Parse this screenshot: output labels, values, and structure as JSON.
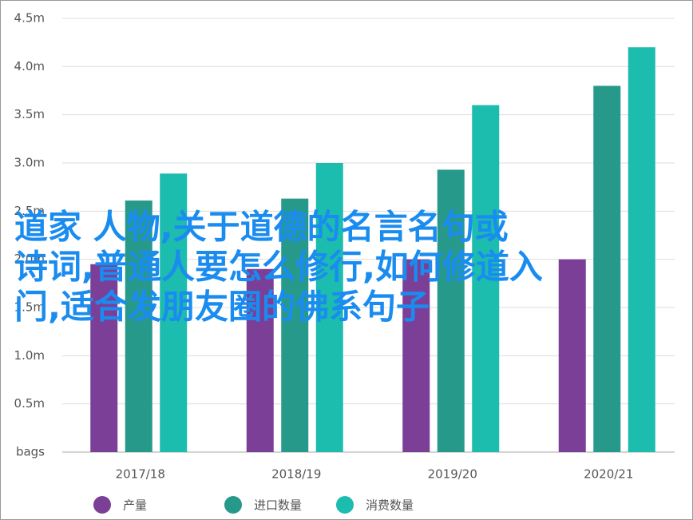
{
  "chart_data": {
    "type": "bar",
    "categories": [
      "2017/18",
      "2018/19",
      "2019/20",
      "2020/21"
    ],
    "series": [
      {
        "name": "产量",
        "color": "#7b3f97",
        "values": [
          1.95,
          1.9,
          2.0,
          2.0
        ]
      },
      {
        "name": "进口数量",
        "color": "#27998b",
        "values": [
          2.61,
          2.63,
          2.93,
          3.8
        ]
      },
      {
        "name": "消费数量",
        "color": "#1cbcaf",
        "values": [
          2.89,
          3.0,
          3.6,
          4.2
        ]
      }
    ],
    "ylim": [
      0,
      4.5
    ],
    "yticks": [
      {
        "value": 0,
        "label": "bags"
      },
      {
        "value": 0.5,
        "label": "0.5m"
      },
      {
        "value": 1.0,
        "label": "1.0m"
      },
      {
        "value": 1.5,
        "label": "1.5m"
      },
      {
        "value": 2.0,
        "label": "2.0m"
      },
      {
        "value": 2.5,
        "label": "2.5m"
      },
      {
        "value": 3.0,
        "label": "3.0m"
      },
      {
        "value": 3.5,
        "label": "3.5m"
      },
      {
        "value": 4.0,
        "label": "4.0m"
      },
      {
        "value": 4.5,
        "label": "4.5m"
      }
    ],
    "grid": true,
    "legend": "bottom",
    "annotations": [
      "道家 人物,关于道德的名言名句或",
      "诗词,普通人要怎么修行,如何修道入",
      "门,适合发朋友圈的佛系句子"
    ]
  }
}
